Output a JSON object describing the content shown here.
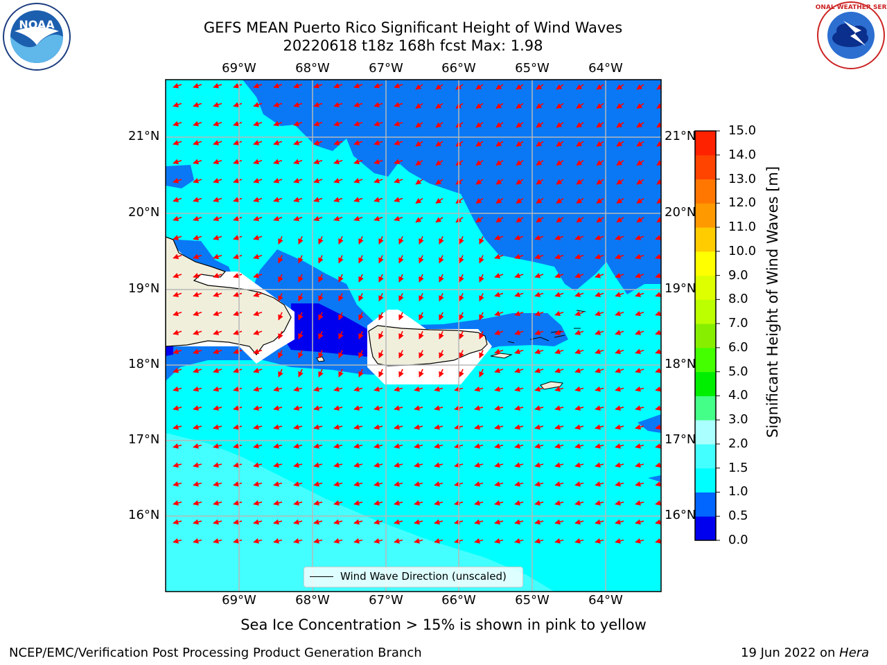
{
  "title": {
    "line1": "GEFS MEAN Puerto Rico Significant Height of Wind Waves",
    "line2": "20220618 t18z 168h fcst   Max: 1.98"
  },
  "logos": {
    "left": {
      "text": "NOAA",
      "ring_text": "NATIONAL OCEANIC AND ATMOSPHERIC ADMINISTRATION · U.S. DEPARTMENT OF COMMERCE"
    },
    "right": {
      "ring_text": "NATIONAL WEATHER SERVICE"
    }
  },
  "axes": {
    "longitude_labels": [
      "69°W",
      "68°W",
      "67°W",
      "66°W",
      "65°W",
      "64°W"
    ],
    "latitude_labels": [
      "21°N",
      "20°N",
      "19°N",
      "18°N",
      "17°N",
      "16°N"
    ]
  },
  "legend": {
    "label": "Wind Wave Direction (unscaled)"
  },
  "colorbar": {
    "label": "Significant Height of Wind Waves [m]",
    "ticks": [
      "0.0",
      "0.5",
      "1.0",
      "1.5",
      "2.0",
      "3.0",
      "4.0",
      "5.0",
      "6.0",
      "7.0",
      "8.0",
      "9.0",
      "10.0",
      "11.0",
      "12.0",
      "13.0",
      "14.0",
      "15.0"
    ],
    "colors": [
      "#0000ee",
      "#0066ff",
      "#00ffff",
      "#44ffff",
      "#aaffff",
      "#44ff88",
      "#00ee00",
      "#44ff00",
      "#88ee00",
      "#bbff00",
      "#ddff00",
      "#ffff00",
      "#ffcc00",
      "#ff9900",
      "#ff7700",
      "#ff4400",
      "#ff2200"
    ]
  },
  "footer": {
    "note": "Sea Ice Concentration > 15% is shown in pink to yellow",
    "left": "NCEP/EMC/Verification Post Processing Product Generation Branch",
    "right_date": "19 Jun 2022 on",
    "right_host": "Hera"
  }
}
